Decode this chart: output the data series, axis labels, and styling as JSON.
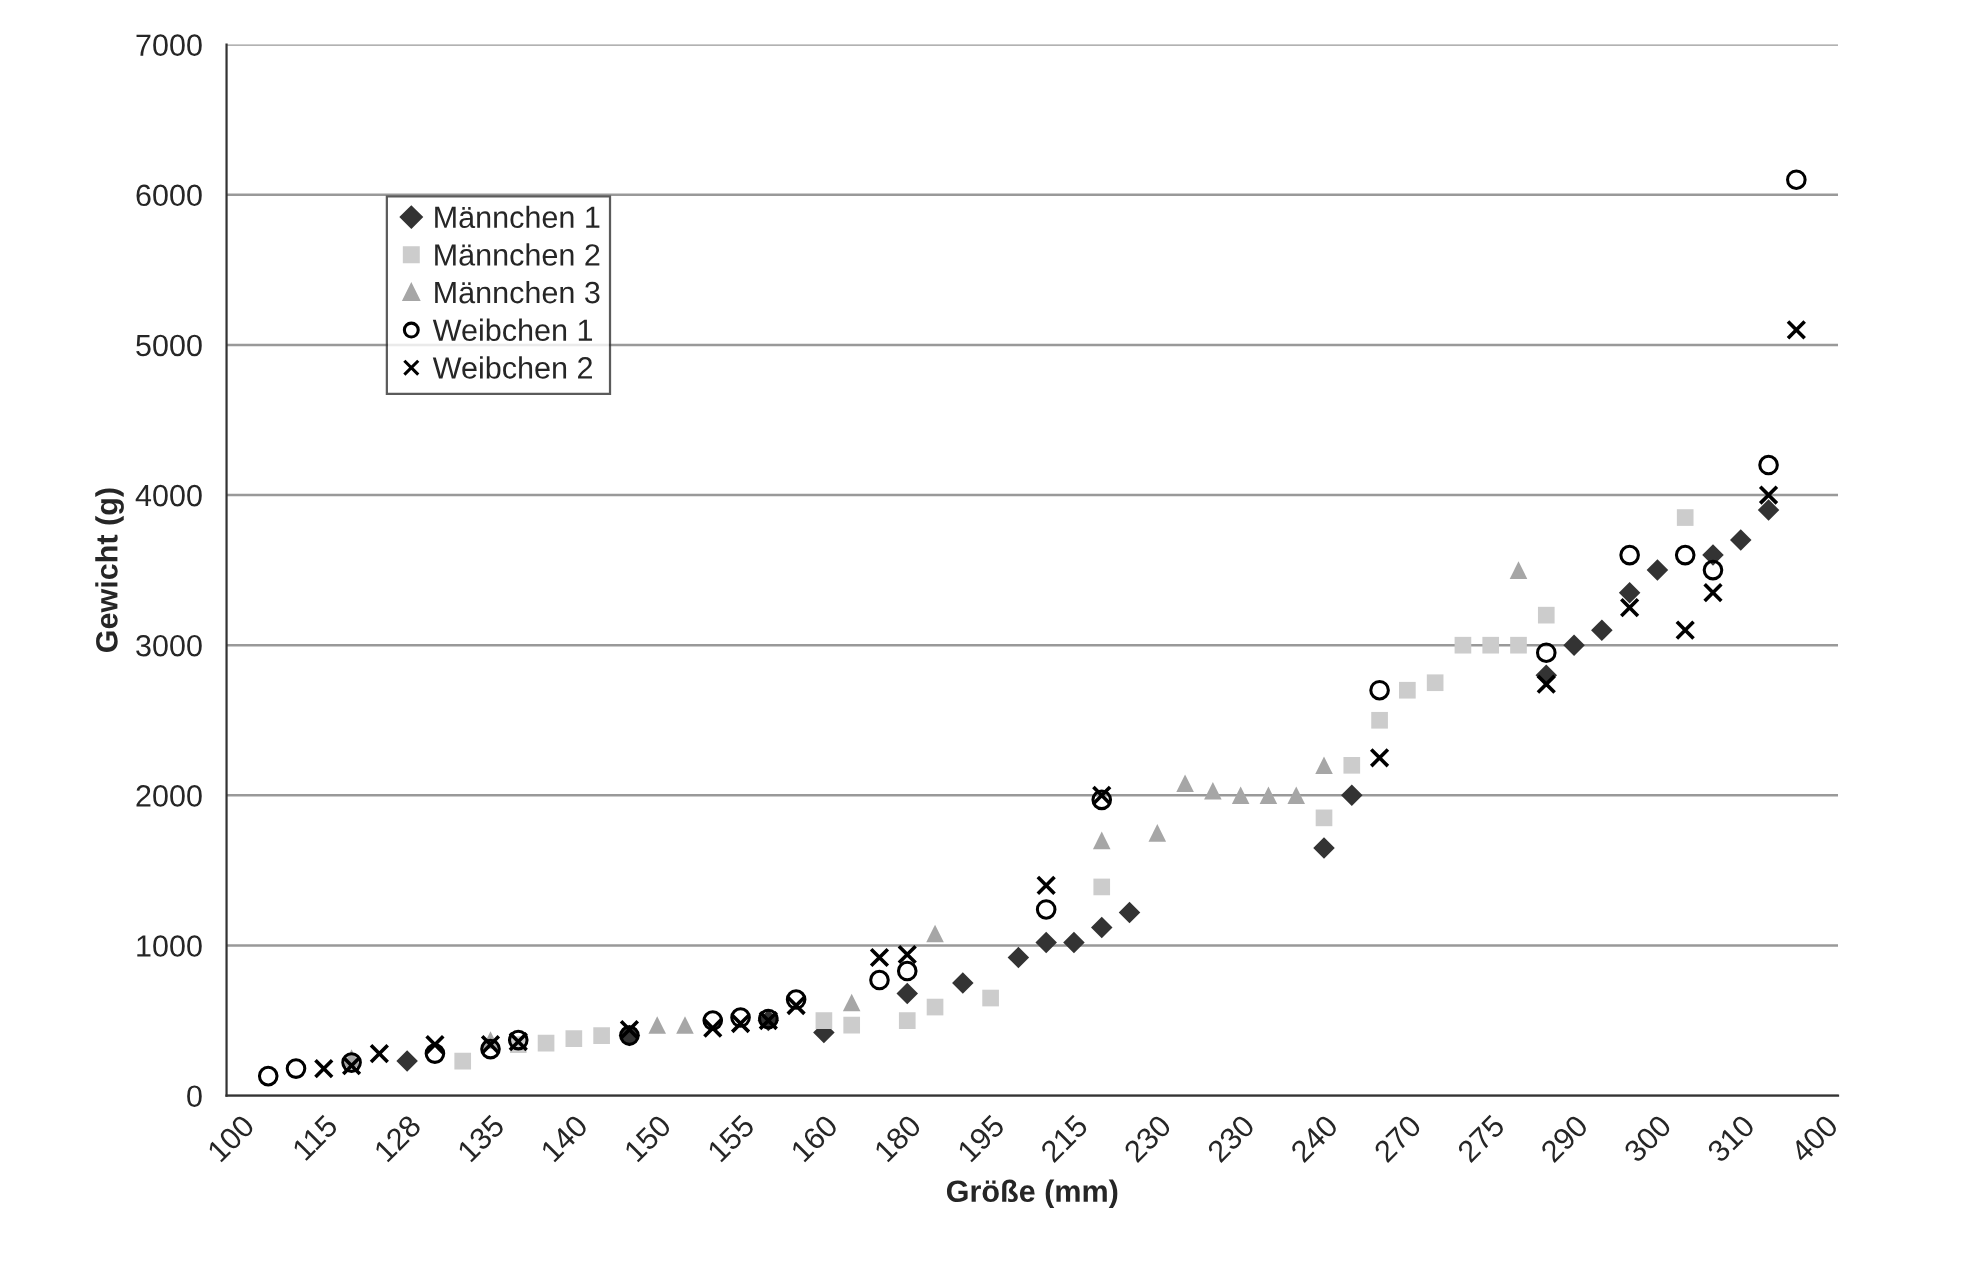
{
  "chart_data": {
    "type": "scatter",
    "xlabel": "Größe (mm)",
    "ylabel": "Gewicht (g)",
    "categories": [
      "100",
      null,
      null,
      "115",
      null,
      null,
      "128",
      null,
      null,
      "135",
      null,
      null,
      "140",
      null,
      null,
      "150",
      null,
      null,
      "155",
      null,
      null,
      "160",
      null,
      null,
      "180",
      null,
      null,
      "195",
      null,
      null,
      "215",
      null,
      null,
      "230",
      null,
      null,
      "230",
      null,
      null,
      "240",
      null,
      null,
      "270",
      null,
      null,
      "275",
      null,
      null,
      "290",
      null,
      null,
      "300",
      null,
      null,
      "310",
      null,
      null,
      "400"
    ],
    "ylim": [
      0,
      7000
    ],
    "yticks": [
      0,
      1000,
      2000,
      3000,
      4000,
      5000,
      6000,
      7000
    ],
    "grid": "y",
    "legend": "top left",
    "series": [
      {
        "name": "Männchen 1",
        "color": "#333333",
        "marker": "diamond",
        "values": [
          null,
          null,
          null,
          null,
          null,
          null,
          230,
          null,
          null,
          null,
          null,
          null,
          null,
          null,
          400,
          null,
          null,
          null,
          null,
          500,
          null,
          420,
          null,
          null,
          680,
          null,
          750,
          null,
          920,
          1020,
          1020,
          1120,
          1220,
          null,
          null,
          null,
          null,
          null,
          null,
          1650,
          2000,
          null,
          null,
          null,
          null,
          null,
          null,
          2800,
          3000,
          3100,
          3350,
          3500,
          null,
          3600,
          3700,
          3900,
          null,
          null
        ]
      },
      {
        "name": "Männchen 2",
        "color": "#cccccc",
        "marker": "square",
        "values": [
          null,
          null,
          null,
          null,
          null,
          null,
          null,
          null,
          230,
          null,
          340,
          350,
          380,
          400,
          null,
          null,
          null,
          null,
          null,
          null,
          null,
          500,
          470,
          null,
          500,
          590,
          null,
          650,
          null,
          null,
          null,
          1390,
          null,
          null,
          null,
          null,
          null,
          null,
          null,
          1850,
          2200,
          2500,
          2700,
          2750,
          3000,
          3000,
          3000,
          3200,
          null,
          null,
          null,
          null,
          3850,
          null,
          null,
          null,
          null,
          null
        ]
      },
      {
        "name": "Männchen 3",
        "color": "#a6a6a6",
        "marker": "triangle",
        "values": [
          null,
          null,
          null,
          null,
          250,
          null,
          null,
          null,
          null,
          370,
          null,
          null,
          null,
          null,
          null,
          470,
          470,
          null,
          null,
          null,
          null,
          null,
          620,
          null,
          null,
          1080,
          null,
          null,
          null,
          null,
          null,
          1700,
          null,
          1750,
          2080,
          2030,
          2000,
          2000,
          2000,
          2200,
          null,
          null,
          null,
          null,
          null,
          null,
          3500,
          null,
          null,
          null,
          null,
          null,
          null,
          null,
          null,
          null,
          null,
          null
        ]
      },
      {
        "name": "Weibchen 1",
        "color": "#000000",
        "marker": "circle",
        "values": [
          null,
          130,
          180,
          null,
          220,
          null,
          null,
          280,
          null,
          310,
          370,
          null,
          null,
          null,
          400,
          null,
          null,
          500,
          520,
          510,
          640,
          null,
          null,
          770,
          830,
          null,
          null,
          null,
          null,
          1240,
          null,
          1970,
          null,
          null,
          null,
          null,
          null,
          null,
          null,
          null,
          null,
          2700,
          null,
          null,
          null,
          null,
          null,
          2950,
          null,
          null,
          3600,
          null,
          3600,
          3500,
          null,
          4200,
          6100,
          null
        ]
      },
      {
        "name": "Weibchen 2",
        "color": "#000000",
        "marker": "cross",
        "values": [
          null,
          null,
          null,
          180,
          200,
          280,
          null,
          340,
          null,
          340,
          360,
          null,
          null,
          null,
          440,
          null,
          null,
          450,
          480,
          500,
          600,
          null,
          null,
          920,
          940,
          null,
          null,
          null,
          null,
          1400,
          null,
          2000,
          null,
          null,
          null,
          null,
          null,
          null,
          null,
          null,
          null,
          2250,
          null,
          null,
          null,
          null,
          null,
          2740,
          null,
          null,
          3250,
          null,
          3100,
          3350,
          null,
          4000,
          5100,
          null
        ]
      }
    ]
  }
}
